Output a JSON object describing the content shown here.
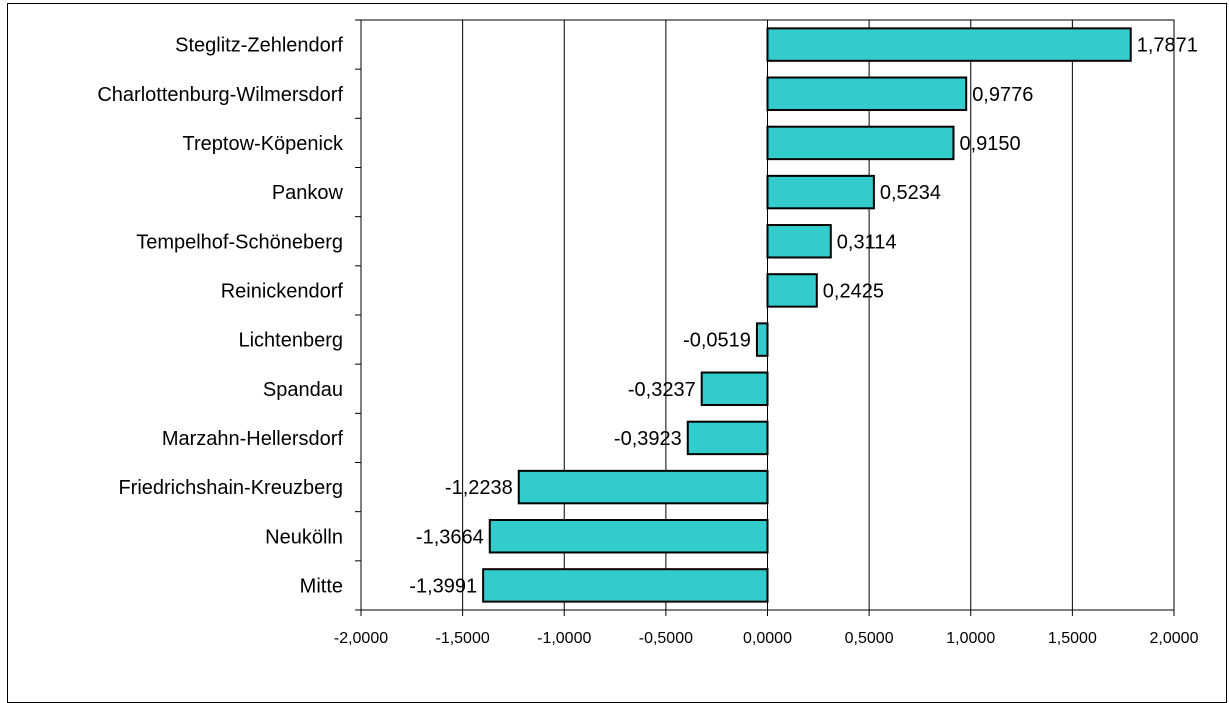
{
  "chart_data": {
    "type": "bar",
    "orientation": "horizontal",
    "categories": [
      "Steglitz-Zehlendorf",
      "Charlottenburg-Wilmersdorf",
      "Treptow-Köpenick",
      "Pankow",
      "Tempelhof-Schöneberg",
      "Reinickendorf",
      "Lichtenberg",
      "Spandau",
      "Marzahn-Hellersdorf",
      "Friedrichshain-Kreuzberg",
      "Neukölln",
      "Mitte"
    ],
    "values": [
      1.7871,
      0.9776,
      0.915,
      0.5234,
      0.3114,
      0.2425,
      -0.0519,
      -0.3237,
      -0.3923,
      -1.2238,
      -1.3664,
      -1.3991
    ],
    "value_labels": [
      "1,7871",
      "0,9776",
      "0,9150",
      "0,5234",
      "0,3114",
      "0,2425",
      "-0,0519",
      "-0,3237",
      "-0,3923",
      "-1,2238",
      "-1,3664",
      "-1,3991"
    ],
    "xlim": [
      -2,
      2
    ],
    "x_ticks": [
      "-2,0000",
      "-1,5000",
      "-1,0000",
      "-0,5000",
      "0,0000",
      "0,5000",
      "1,0000",
      "1,5000",
      "2,0000"
    ],
    "grid": true,
    "bar_color": "#33CCCC",
    "title": "",
    "xlabel": "",
    "ylabel": ""
  }
}
